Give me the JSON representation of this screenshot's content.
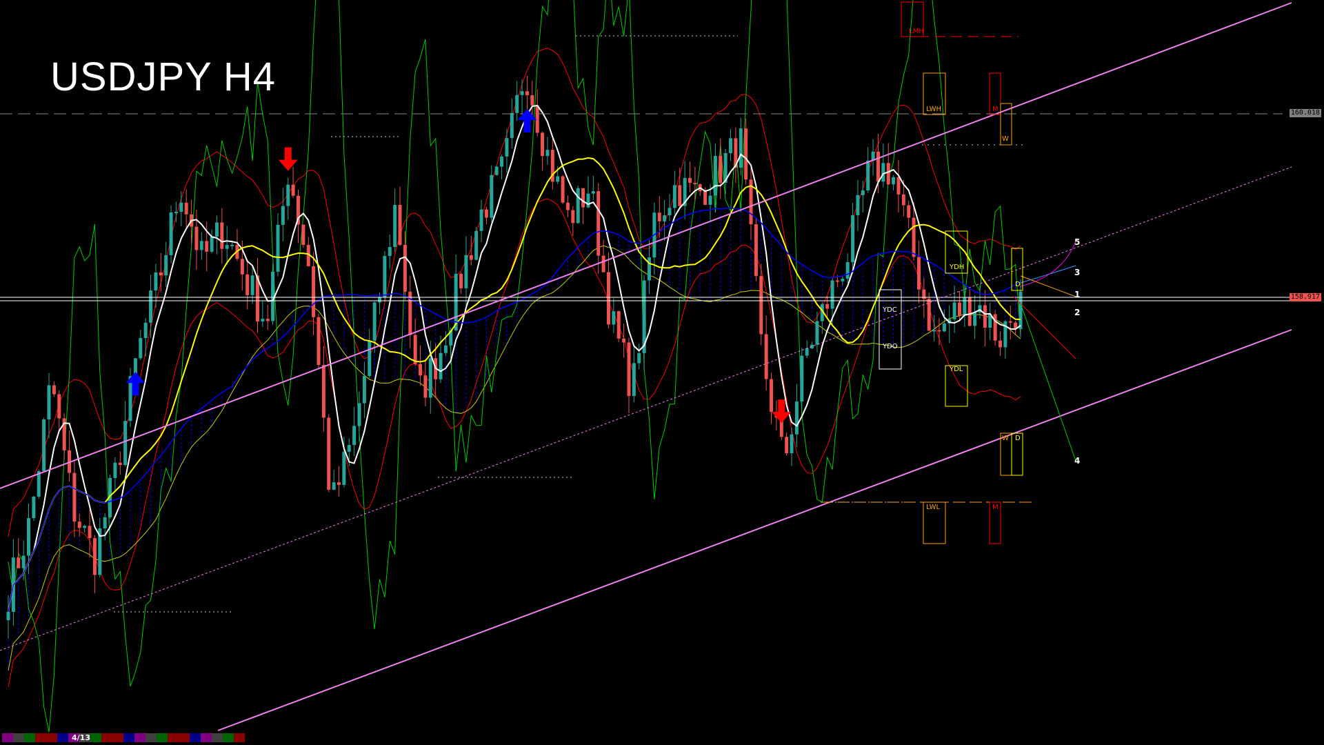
{
  "title": "USDJPY H4",
  "price_labels": {
    "upper": "160.018",
    "current": "158.917"
  },
  "page_indicator": "4/13",
  "levels": {
    "lmh": "LMH",
    "lwh": "LWH",
    "m_high": "M",
    "w_high": "W",
    "ydh": "YDH",
    "ydc": "YDC",
    "ydo": "YDO",
    "ydl": "YDL",
    "d_high": "D",
    "w_low": "W",
    "d_low": "D",
    "lwl": "LWL",
    "m_low": "M"
  },
  "projection_numbers": [
    "5",
    "3",
    "1",
    "2",
    "4"
  ],
  "colors": {
    "background": "#000000",
    "bull": "#26a69a",
    "bear": "#ef5350",
    "channel": "#ee82ee",
    "ma_fast": "#ffffff",
    "ma_mid": "#ffff00",
    "ma_slow": "#0000ff",
    "envelope": "#ff0000",
    "oscillator": "#00cc00",
    "cloud": "#0000ff"
  },
  "bottom_bar_colors": [
    "#800080",
    "#404040",
    "#006400",
    "#8b0000",
    "#8b0000",
    "#00008b",
    "#800080",
    "#404040",
    "#006400",
    "#8b0000",
    "#8b0000",
    "#00008b"
  ],
  "chart_data": {
    "type": "candlestick",
    "symbol": "USDJPY",
    "timeframe": "H4",
    "ylim": [
      156.24,
      160.69
    ],
    "grid": false,
    "horizontal_levels": [
      160.018,
      158.917
    ],
    "close_path": [
      157.16,
      157.56,
      158.42,
      157.66,
      157.36,
      157.87,
      158.57,
      159.03,
      159.58,
      159.13,
      159.33,
      159.03,
      158.77,
      159.68,
      159.08,
      157.66,
      158.07,
      158.77,
      159.48,
      158.32,
      158.57,
      159.03,
      159.43,
      159.68,
      160.29,
      159.78,
      159.38,
      159.58,
      158.77,
      158.37,
      159.38,
      159.58,
      159.53,
      159.68,
      159.84,
      158.57,
      157.92,
      158.57,
      158.88,
      159.18,
      159.68,
      159.68,
      159.18,
      158.67,
      158.83,
      158.88,
      158.67,
      158.88
    ],
    "signals": [
      {
        "type": "buy",
        "index": 6
      },
      {
        "type": "sell",
        "index": 13
      },
      {
        "type": "buy",
        "index": 24
      },
      {
        "type": "sell",
        "index": 36
      }
    ]
  }
}
